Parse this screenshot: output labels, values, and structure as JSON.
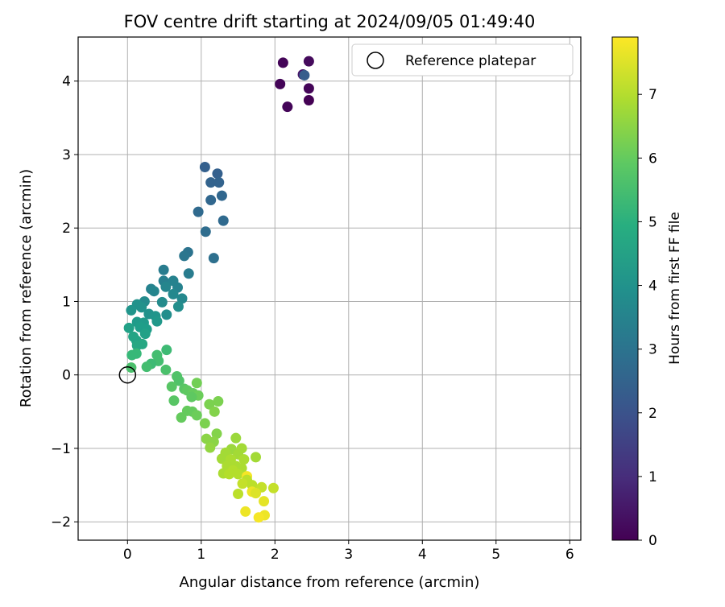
{
  "chart_data": {
    "type": "scatter",
    "title": "FOV centre drift starting at 2024/09/05 01:49:40",
    "xlabel": "Angular distance from reference (arcmin)",
    "ylabel": "Rotation from reference (arcmin)",
    "xlim": [
      -0.67,
      6.15
    ],
    "ylim": [
      -2.25,
      4.6
    ],
    "xticks": [
      "0",
      "1",
      "2",
      "3",
      "4",
      "5",
      "6"
    ],
    "yticks": [
      "−2",
      "−1",
      "0",
      "1",
      "2",
      "3",
      "4"
    ],
    "grid": true,
    "legend": {
      "position": "top-right",
      "entries": [
        "Reference platepar"
      ]
    },
    "reference_point": {
      "x": 0,
      "y": 0,
      "label": "Reference platepar"
    },
    "colorbar": {
      "label": "Hours from first FF file",
      "colormap": "viridis",
      "range": [
        0,
        7.9
      ],
      "ticks": [
        "0",
        "1",
        "2",
        "3",
        "4",
        "5",
        "6",
        "7"
      ]
    },
    "points": [
      {
        "x": 2.11,
        "y": 4.25,
        "h": 0.1
      },
      {
        "x": 2.46,
        "y": 4.27,
        "h": 0.2
      },
      {
        "x": 2.38,
        "y": 4.09,
        "h": 0.5
      },
      {
        "x": 2.4,
        "y": 4.08,
        "h": 2.3
      },
      {
        "x": 2.07,
        "y": 3.96,
        "h": 0.1
      },
      {
        "x": 2.46,
        "y": 3.9,
        "h": 0.1
      },
      {
        "x": 2.17,
        "y": 3.65,
        "h": 0.1
      },
      {
        "x": 2.46,
        "y": 3.74,
        "h": 0.0
      },
      {
        "x": 1.05,
        "y": 2.83,
        "h": 2.4
      },
      {
        "x": 1.22,
        "y": 2.74,
        "h": 2.4
      },
      {
        "x": 1.13,
        "y": 2.62,
        "h": 2.5
      },
      {
        "x": 1.24,
        "y": 2.62,
        "h": 2.5
      },
      {
        "x": 1.28,
        "y": 2.44,
        "h": 2.6
      },
      {
        "x": 1.13,
        "y": 2.38,
        "h": 2.6
      },
      {
        "x": 0.96,
        "y": 2.22,
        "h": 2.7
      },
      {
        "x": 1.3,
        "y": 2.1,
        "h": 2.7
      },
      {
        "x": 1.06,
        "y": 1.95,
        "h": 2.8
      },
      {
        "x": 0.82,
        "y": 1.67,
        "h": 3.0
      },
      {
        "x": 0.77,
        "y": 1.62,
        "h": 3.1
      },
      {
        "x": 1.17,
        "y": 1.59,
        "h": 2.9
      },
      {
        "x": 0.49,
        "y": 1.43,
        "h": 3.3
      },
      {
        "x": 0.83,
        "y": 1.38,
        "h": 3.3
      },
      {
        "x": 0.49,
        "y": 1.28,
        "h": 3.4
      },
      {
        "x": 0.62,
        "y": 1.28,
        "h": 3.5
      },
      {
        "x": 0.32,
        "y": 1.17,
        "h": 3.5
      },
      {
        "x": 0.52,
        "y": 1.2,
        "h": 3.6
      },
      {
        "x": 0.36,
        "y": 1.14,
        "h": 3.6
      },
      {
        "x": 0.68,
        "y": 1.19,
        "h": 3.5
      },
      {
        "x": 0.62,
        "y": 1.1,
        "h": 3.7
      },
      {
        "x": 0.74,
        "y": 1.04,
        "h": 3.7
      },
      {
        "x": 0.23,
        "y": 1.0,
        "h": 3.8
      },
      {
        "x": 0.47,
        "y": 0.99,
        "h": 3.8
      },
      {
        "x": 0.13,
        "y": 0.96,
        "h": 4.0
      },
      {
        "x": 0.19,
        "y": 0.92,
        "h": 4.0
      },
      {
        "x": 0.69,
        "y": 0.93,
        "h": 3.9
      },
      {
        "x": 0.05,
        "y": 0.88,
        "h": 4.1
      },
      {
        "x": 0.29,
        "y": 0.83,
        "h": 4.0
      },
      {
        "x": 0.53,
        "y": 0.82,
        "h": 3.9
      },
      {
        "x": 0.38,
        "y": 0.8,
        "h": 4.1
      },
      {
        "x": 0.4,
        "y": 0.73,
        "h": 4.2
      },
      {
        "x": 0.13,
        "y": 0.72,
        "h": 4.3
      },
      {
        "x": 0.22,
        "y": 0.71,
        "h": 4.3
      },
      {
        "x": 0.17,
        "y": 0.65,
        "h": 4.4
      },
      {
        "x": 0.26,
        "y": 0.62,
        "h": 4.4
      },
      {
        "x": 0.02,
        "y": 0.64,
        "h": 4.5
      },
      {
        "x": 0.24,
        "y": 0.56,
        "h": 4.5
      },
      {
        "x": 0.08,
        "y": 0.52,
        "h": 4.6
      },
      {
        "x": 0.12,
        "y": 0.47,
        "h": 4.6
      },
      {
        "x": 0.2,
        "y": 0.42,
        "h": 4.7
      },
      {
        "x": 0.13,
        "y": 0.4,
        "h": 4.7
      },
      {
        "x": 0.53,
        "y": 0.34,
        "h": 5.4
      },
      {
        "x": 0.12,
        "y": 0.29,
        "h": 5.3
      },
      {
        "x": 0.06,
        "y": 0.27,
        "h": 5.3
      },
      {
        "x": 0.4,
        "y": 0.27,
        "h": 5.5
      },
      {
        "x": 0.42,
        "y": 0.19,
        "h": 5.5
      },
      {
        "x": 0.32,
        "y": 0.15,
        "h": 5.4
      },
      {
        "x": 0.26,
        "y": 0.11,
        "h": 5.5
      },
      {
        "x": 0.05,
        "y": 0.1,
        "h": 5.6
      },
      {
        "x": 0.52,
        "y": 0.07,
        "h": 5.6
      },
      {
        "x": 0.67,
        "y": -0.02,
        "h": 5.7
      },
      {
        "x": 0.7,
        "y": -0.08,
        "h": 5.7
      },
      {
        "x": 0.94,
        "y": -0.11,
        "h": 6.2
      },
      {
        "x": 0.6,
        "y": -0.16,
        "h": 5.8
      },
      {
        "x": 0.77,
        "y": -0.19,
        "h": 5.8
      },
      {
        "x": 0.81,
        "y": -0.21,
        "h": 5.9
      },
      {
        "x": 0.89,
        "y": -0.25,
        "h": 6.0
      },
      {
        "x": 0.96,
        "y": -0.28,
        "h": 6.1
      },
      {
        "x": 0.87,
        "y": -0.3,
        "h": 5.9
      },
      {
        "x": 0.63,
        "y": -0.35,
        "h": 5.8
      },
      {
        "x": 1.23,
        "y": -0.36,
        "h": 6.3
      },
      {
        "x": 1.11,
        "y": -0.4,
        "h": 6.3
      },
      {
        "x": 0.81,
        "y": -0.49,
        "h": 6.0
      },
      {
        "x": 0.88,
        "y": -0.5,
        "h": 6.0
      },
      {
        "x": 1.18,
        "y": -0.5,
        "h": 6.4
      },
      {
        "x": 0.94,
        "y": -0.55,
        "h": 6.1
      },
      {
        "x": 0.73,
        "y": -0.58,
        "h": 6.0
      },
      {
        "x": 1.05,
        "y": -0.66,
        "h": 6.3
      },
      {
        "x": 1.21,
        "y": -0.8,
        "h": 6.4
      },
      {
        "x": 1.07,
        "y": -0.87,
        "h": 6.5
      },
      {
        "x": 1.17,
        "y": -0.91,
        "h": 6.5
      },
      {
        "x": 1.12,
        "y": -0.99,
        "h": 6.6
      },
      {
        "x": 1.47,
        "y": -0.86,
        "h": 6.7
      },
      {
        "x": 1.41,
        "y": -1.01,
        "h": 6.7
      },
      {
        "x": 1.55,
        "y": -1.0,
        "h": 6.8
      },
      {
        "x": 1.33,
        "y": -1.06,
        "h": 6.8
      },
      {
        "x": 1.5,
        "y": -1.08,
        "h": 6.8
      },
      {
        "x": 1.28,
        "y": -1.14,
        "h": 6.8
      },
      {
        "x": 1.4,
        "y": -1.15,
        "h": 6.9
      },
      {
        "x": 1.58,
        "y": -1.15,
        "h": 6.9
      },
      {
        "x": 1.74,
        "y": -1.12,
        "h": 6.8
      },
      {
        "x": 1.35,
        "y": -1.24,
        "h": 6.9
      },
      {
        "x": 1.47,
        "y": -1.24,
        "h": 6.9
      },
      {
        "x": 1.55,
        "y": -1.27,
        "h": 6.9
      },
      {
        "x": 1.43,
        "y": -1.3,
        "h": 7.0
      },
      {
        "x": 1.3,
        "y": -1.34,
        "h": 6.9
      },
      {
        "x": 1.5,
        "y": -1.35,
        "h": 7.0
      },
      {
        "x": 1.38,
        "y": -1.35,
        "h": 7.0
      },
      {
        "x": 1.62,
        "y": -1.38,
        "h": 7.8
      },
      {
        "x": 1.62,
        "y": -1.43,
        "h": 7.1
      },
      {
        "x": 1.56,
        "y": -1.48,
        "h": 7.2
      },
      {
        "x": 1.69,
        "y": -1.5,
        "h": 7.1
      },
      {
        "x": 1.82,
        "y": -1.53,
        "h": 7.2
      },
      {
        "x": 1.98,
        "y": -1.54,
        "h": 7.2
      },
      {
        "x": 1.69,
        "y": -1.59,
        "h": 7.7
      },
      {
        "x": 1.5,
        "y": -1.62,
        "h": 7.1
      },
      {
        "x": 1.74,
        "y": -1.61,
        "h": 7.5
      },
      {
        "x": 1.85,
        "y": -1.72,
        "h": 7.6
      },
      {
        "x": 1.6,
        "y": -1.86,
        "h": 7.7
      },
      {
        "x": 1.86,
        "y": -1.91,
        "h": 7.7
      },
      {
        "x": 1.78,
        "y": -1.94,
        "h": 7.8
      }
    ]
  }
}
